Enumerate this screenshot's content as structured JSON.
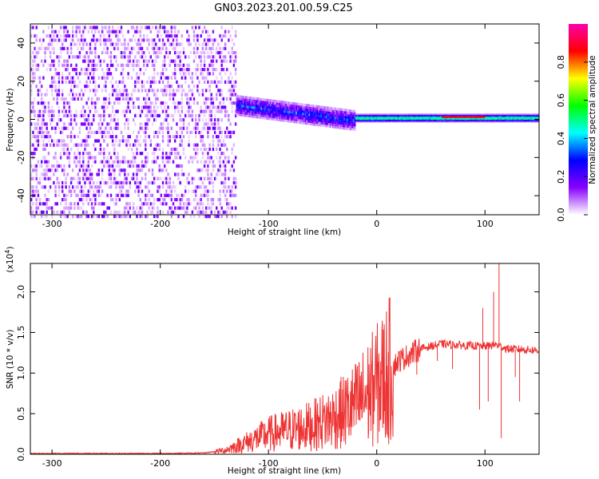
{
  "title": "GN03.2023.201.00.59.C25",
  "chart_data": [
    {
      "type": "heatmap",
      "xlabel": "Height of straight line (km)",
      "ylabel": "Frequency (Hz)",
      "xlim": [
        -320,
        150
      ],
      "ylim": [
        -50,
        50
      ],
      "xticks": [
        -300,
        -200,
        -100,
        0,
        100
      ],
      "yticks": [
        -40,
        -20,
        0,
        20,
        40
      ],
      "colorbar": {
        "label": "Normalized spectral amplitude",
        "range": [
          0.0,
          1.0
        ],
        "ticks": [
          "0.0",
          "0.2",
          "0.4",
          "0.6",
          "0.8"
        ],
        "colors": [
          "#ffffff",
          "#8800ff",
          "#0000ff",
          "#00ffff",
          "#00ff00",
          "#ffff00",
          "#ff0000",
          "#ff00aa"
        ]
      },
      "regions": [
        {
          "x_range": [
            -320,
            -130
          ],
          "y_range": [
            -50,
            50
          ],
          "amplitude": 0.05
        },
        {
          "x_range": [
            -130,
            -20
          ],
          "y_center_range": [
            8,
            0
          ],
          "y_halfwidth": 6,
          "amplitude": 0.3
        },
        {
          "x_range": [
            -20,
            150
          ],
          "y_center": 1,
          "y_halfwidth": 2,
          "amplitude": 0.55
        },
        {
          "x_range": [
            60,
            100
          ],
          "y_center": 1,
          "y_halfwidth": 1,
          "amplitude": 0.85
        }
      ]
    },
    {
      "type": "line",
      "xlabel": "Height of straight line (km)",
      "ylabel": "SNR (10 * v/v)",
      "y_multiplier": "(x10",
      "y_multiplier_exp": "4",
      "xlim": [
        -320,
        150
      ],
      "ylim": [
        0,
        23500
      ],
      "xticks": [
        -300,
        -200,
        -100,
        0,
        100
      ],
      "yticks": [
        0,
        5000,
        10000,
        15000,
        20000
      ],
      "ytick_labels": [
        "0.0",
        "0.5",
        "1.0",
        "1.5",
        "2.0"
      ],
      "color": "#ee3333",
      "series": [
        {
          "x": [
            -320,
            -250,
            -200,
            -160,
            -140,
            -120,
            -100,
            -80,
            -60,
            -40,
            -20,
            0,
            20,
            40,
            60,
            80,
            100,
            110,
            120,
            150
          ],
          "values": [
            100,
            100,
            100,
            150,
            500,
            1500,
            2500,
            3000,
            3500,
            4500,
            6000,
            8500,
            11500,
            13000,
            13600,
            13400,
            13300,
            13500,
            13000,
            12800
          ]
        }
      ],
      "spikes": [
        {
          "x": 37,
          "value": 9800
        },
        {
          "x": 56,
          "value": 11500
        },
        {
          "x": 70,
          "value": 10500
        },
        {
          "x": 95,
          "value": 5500
        },
        {
          "x": 98,
          "value": 18000
        },
        {
          "x": 103,
          "value": 6500
        },
        {
          "x": 108,
          "value": 20000
        },
        {
          "x": 113,
          "value": 23500
        },
        {
          "x": 115,
          "value": 2000
        },
        {
          "x": 128,
          "value": 9500
        },
        {
          "x": 132,
          "value": 6500
        }
      ]
    }
  ]
}
